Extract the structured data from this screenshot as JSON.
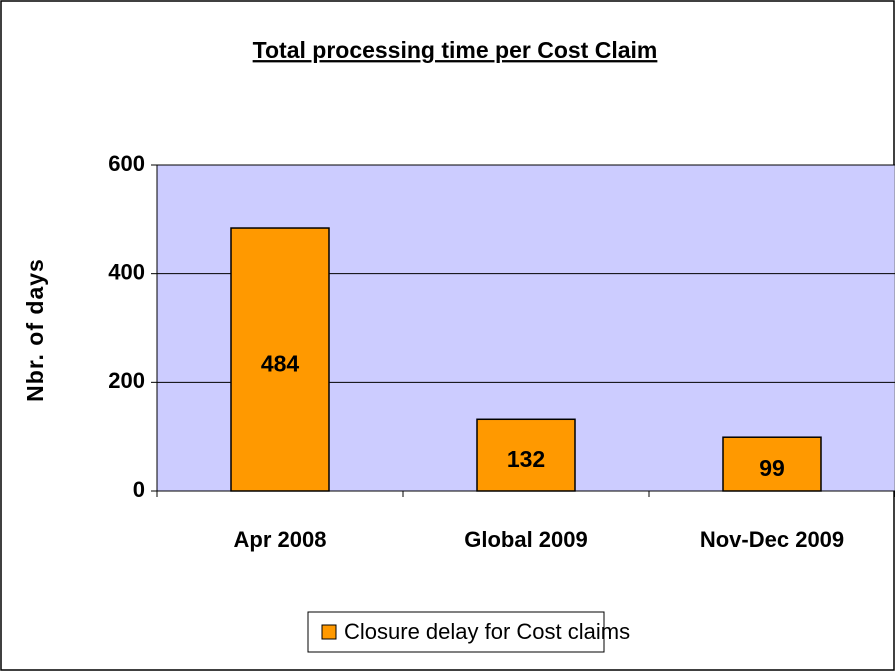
{
  "chart_data": {
    "type": "bar",
    "title": "Total processing time per Cost Claim",
    "y_label": "Nbr. of days",
    "categories": [
      "Apr 2008",
      "Global 2009",
      "Nov-Dec 2009"
    ],
    "series": [
      {
        "name": "Closure delay for Cost claims",
        "color": "#ff9900",
        "values": [
          484,
          132,
          99
        ]
      }
    ],
    "ylim": [
      0,
      600
    ],
    "yticks": [
      0,
      200,
      400,
      600
    ],
    "grid": true,
    "legend": "bottom",
    "plot_background": "#ccccff"
  }
}
